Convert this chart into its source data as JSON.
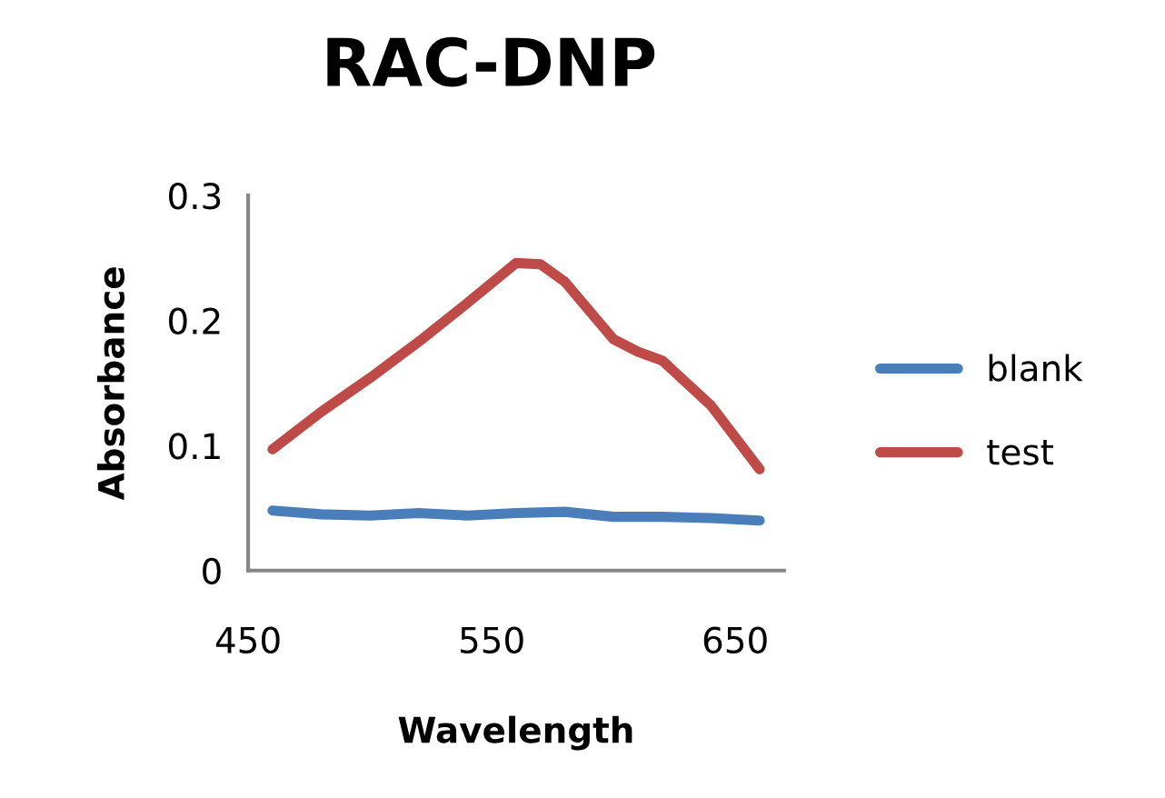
{
  "chart_data": {
    "type": "line",
    "title": "RAC-DNP",
    "xlabel": "Wavelength",
    "ylabel": "Absorbance",
    "xlim": [
      450,
      670
    ],
    "xticks": [
      450,
      550,
      650
    ],
    "ylim": [
      0,
      0.3
    ],
    "yticks": [
      0,
      0.1,
      0.2,
      0.3
    ],
    "grid": false,
    "legend": "right",
    "marker": "none",
    "line_style": "solid",
    "series": [
      {
        "name": "blank",
        "color": "#4a7ebb",
        "x": [
          460,
          480,
          500,
          520,
          540,
          560,
          580,
          600,
          620,
          640,
          660
        ],
        "values": [
          0.048,
          0.045,
          0.044,
          0.046,
          0.044,
          0.046,
          0.047,
          0.043,
          0.043,
          0.042,
          0.04
        ]
      },
      {
        "name": "test",
        "color": "#be4b48",
        "x": [
          460,
          480,
          500,
          520,
          540,
          560,
          570,
          580,
          600,
          610,
          620,
          640,
          660
        ],
        "values": [
          0.097,
          0.127,
          0.154,
          0.183,
          0.214,
          0.246,
          0.245,
          0.231,
          0.185,
          0.175,
          0.168,
          0.132,
          0.081
        ]
      }
    ]
  }
}
